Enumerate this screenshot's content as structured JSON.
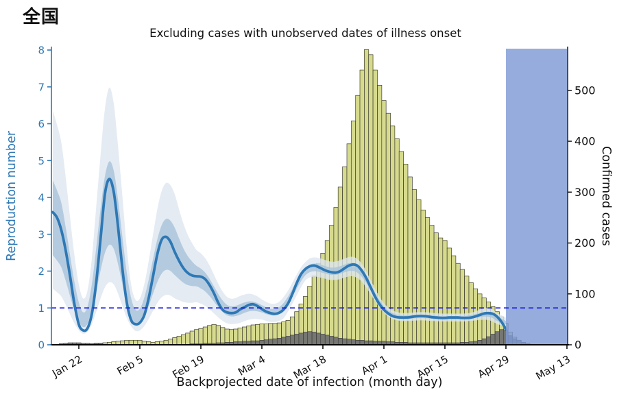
{
  "page": {
    "region_title": "全国"
  },
  "colors": {
    "bar_fill": "#d6da8d",
    "bar_edge": "#3f3f30",
    "gray_fill": "#767672",
    "gray_edge": "#2f2f2f",
    "ci95_fill": "#dce6f0",
    "ci50_fill": "#a7c3da",
    "median_line": "#2e78b5",
    "threshold_line": "#1f1fe0",
    "overlay_fill": "#7e9ad6",
    "left_axis": "#2e78b5",
    "right_axis": "#111111"
  },
  "chart_data": {
    "type": "composite (bar + line with confidence bands)",
    "title": "全国",
    "subtitle": "Excluding cases with unobserved dates of illness onset",
    "xlabel": "Backprojected date of infection (month day)",
    "ylabel_left": "Reproduction number",
    "ylabel_right": "Confirmed cases",
    "ylim_left": [
      0,
      8
    ],
    "ylim_right": [
      0,
      583
    ],
    "left_ticks": [
      0,
      1,
      2,
      3,
      4,
      5,
      6,
      7,
      8
    ],
    "right_ticks": [
      0,
      100,
      200,
      300,
      400,
      500
    ],
    "hline": 1,
    "start_date": "Jan 16",
    "x_ticks": [
      {
        "label": "Jan 22",
        "day": 6
      },
      {
        "label": "Feb 5",
        "day": 20
      },
      {
        "label": "Feb 19",
        "day": 34
      },
      {
        "label": "Mar 4",
        "day": 48
      },
      {
        "label": "Mar 18",
        "day": 62
      },
      {
        "label": "Apr 1",
        "day": 76
      },
      {
        "label": "Apr 15",
        "day": 90
      },
      {
        "label": "Apr 29",
        "day": 104
      },
      {
        "label": "May 13",
        "day": 118
      }
    ],
    "shaded_region": {
      "from_day": 104,
      "to_day": 118,
      "meaning": "recent period overlay"
    },
    "series": [
      {
        "name": "confirmed_cases",
        "style": "bars",
        "values": [
          1,
          1,
          2,
          2,
          3,
          3,
          3,
          2,
          2,
          2,
          3,
          3,
          4,
          5,
          6,
          7,
          8,
          9,
          9,
          9,
          9,
          7,
          6,
          5,
          6,
          7,
          9,
          11,
          14,
          17,
          20,
          23,
          27,
          30,
          32,
          35,
          38,
          40,
          38,
          34,
          31,
          30,
          31,
          33,
          35,
          37,
          39,
          40,
          41,
          41,
          42,
          42,
          43,
          45,
          48,
          55,
          65,
          80,
          95,
          115,
          135,
          160,
          180,
          205,
          235,
          270,
          310,
          350,
          395,
          440,
          490,
          540,
          580,
          570,
          540,
          510,
          480,
          455,
          430,
          405,
          380,
          355,
          330,
          305,
          285,
          265,
          250,
          235,
          220,
          210,
          205,
          190,
          175,
          160,
          148,
          135,
          122,
          110,
          100,
          92,
          84,
          75,
          65,
          55,
          42,
          25,
          15,
          9,
          5,
          3,
          1
        ]
      },
      {
        "name": "unobserved_onset_cases",
        "style": "gray-bars",
        "values": [
          1,
          1,
          2,
          3,
          4,
          4,
          4,
          3,
          3,
          2,
          2,
          2,
          1,
          1,
          1,
          1,
          1,
          1,
          1,
          1,
          1,
          1,
          1,
          1,
          1,
          1,
          1,
          1,
          1,
          1,
          1,
          1,
          2,
          2,
          2,
          3,
          3,
          3,
          4,
          4,
          5,
          5,
          6,
          6,
          7,
          7,
          8,
          8,
          9,
          10,
          11,
          12,
          13,
          15,
          17,
          19,
          21,
          23,
          25,
          26,
          25,
          23,
          21,
          19,
          17,
          15,
          13,
          12,
          11,
          10,
          9,
          9,
          8,
          8,
          7,
          7,
          7,
          6,
          6,
          5,
          5,
          5,
          4,
          4,
          4,
          4,
          4,
          4,
          4,
          4,
          4,
          4,
          4,
          4,
          5,
          5,
          6,
          7,
          9,
          12,
          16,
          21,
          26,
          30,
          28,
          18,
          12,
          8,
          5,
          3,
          1
        ]
      },
      {
        "name": "reproduction_number_median",
        "style": "line",
        "values": [
          3.6,
          3.45,
          3.1,
          2.55,
          1.85,
          1.1,
          0.55,
          0.39,
          0.45,
          0.85,
          1.7,
          2.9,
          4.1,
          4.5,
          4.15,
          3.2,
          2.05,
          1.15,
          0.67,
          0.56,
          0.6,
          0.8,
          1.25,
          1.85,
          2.45,
          2.85,
          2.93,
          2.8,
          2.52,
          2.28,
          2.08,
          1.95,
          1.88,
          1.86,
          1.85,
          1.78,
          1.62,
          1.4,
          1.14,
          0.95,
          0.88,
          0.86,
          0.88,
          0.96,
          1.02,
          1.08,
          1.1,
          1.05,
          0.97,
          0.9,
          0.86,
          0.84,
          0.87,
          0.96,
          1.12,
          1.38,
          1.68,
          1.92,
          2.06,
          2.13,
          2.15,
          2.11,
          2.05,
          2.0,
          1.97,
          1.96,
          2.0,
          2.08,
          2.15,
          2.18,
          2.14,
          2.0,
          1.8,
          1.55,
          1.3,
          1.1,
          0.95,
          0.85,
          0.78,
          0.75,
          0.74,
          0.74,
          0.75,
          0.77,
          0.78,
          0.78,
          0.77,
          0.75,
          0.74,
          0.73,
          0.73,
          0.74,
          0.74,
          0.74,
          0.73,
          0.73,
          0.74,
          0.77,
          0.81,
          0.85,
          0.86,
          0.84,
          0.76,
          0.62,
          0.42
        ]
      }
    ],
    "ci_factors": [
      {
        "from": 0,
        "to": 15,
        "lo95": 0.45,
        "lo50": 0.72,
        "hi50": 1.32,
        "hi95": 1.88
      },
      {
        "from": 16,
        "to": 30,
        "lo95": 0.5,
        "lo50": 0.75,
        "hi50": 1.26,
        "hi95": 1.62
      },
      {
        "from": 31,
        "to": 45,
        "lo95": 0.62,
        "lo50": 0.85,
        "hi50": 1.15,
        "hi95": 1.38
      },
      {
        "from": 46,
        "to": 55,
        "lo95": 0.7,
        "lo50": 0.9,
        "hi50": 1.1,
        "hi95": 1.26
      },
      {
        "from": 56,
        "to": 76,
        "lo95": 0.88,
        "lo50": 0.95,
        "hi50": 1.05,
        "hi95": 1.13
      },
      {
        "from": 77,
        "to": 98,
        "lo95": 0.86,
        "lo50": 0.94,
        "hi50": 1.06,
        "hi95": 1.15
      },
      {
        "from": 99,
        "to": 104,
        "lo95": 0.8,
        "lo50": 0.92,
        "hi50": 1.08,
        "hi95": 1.22
      }
    ]
  }
}
